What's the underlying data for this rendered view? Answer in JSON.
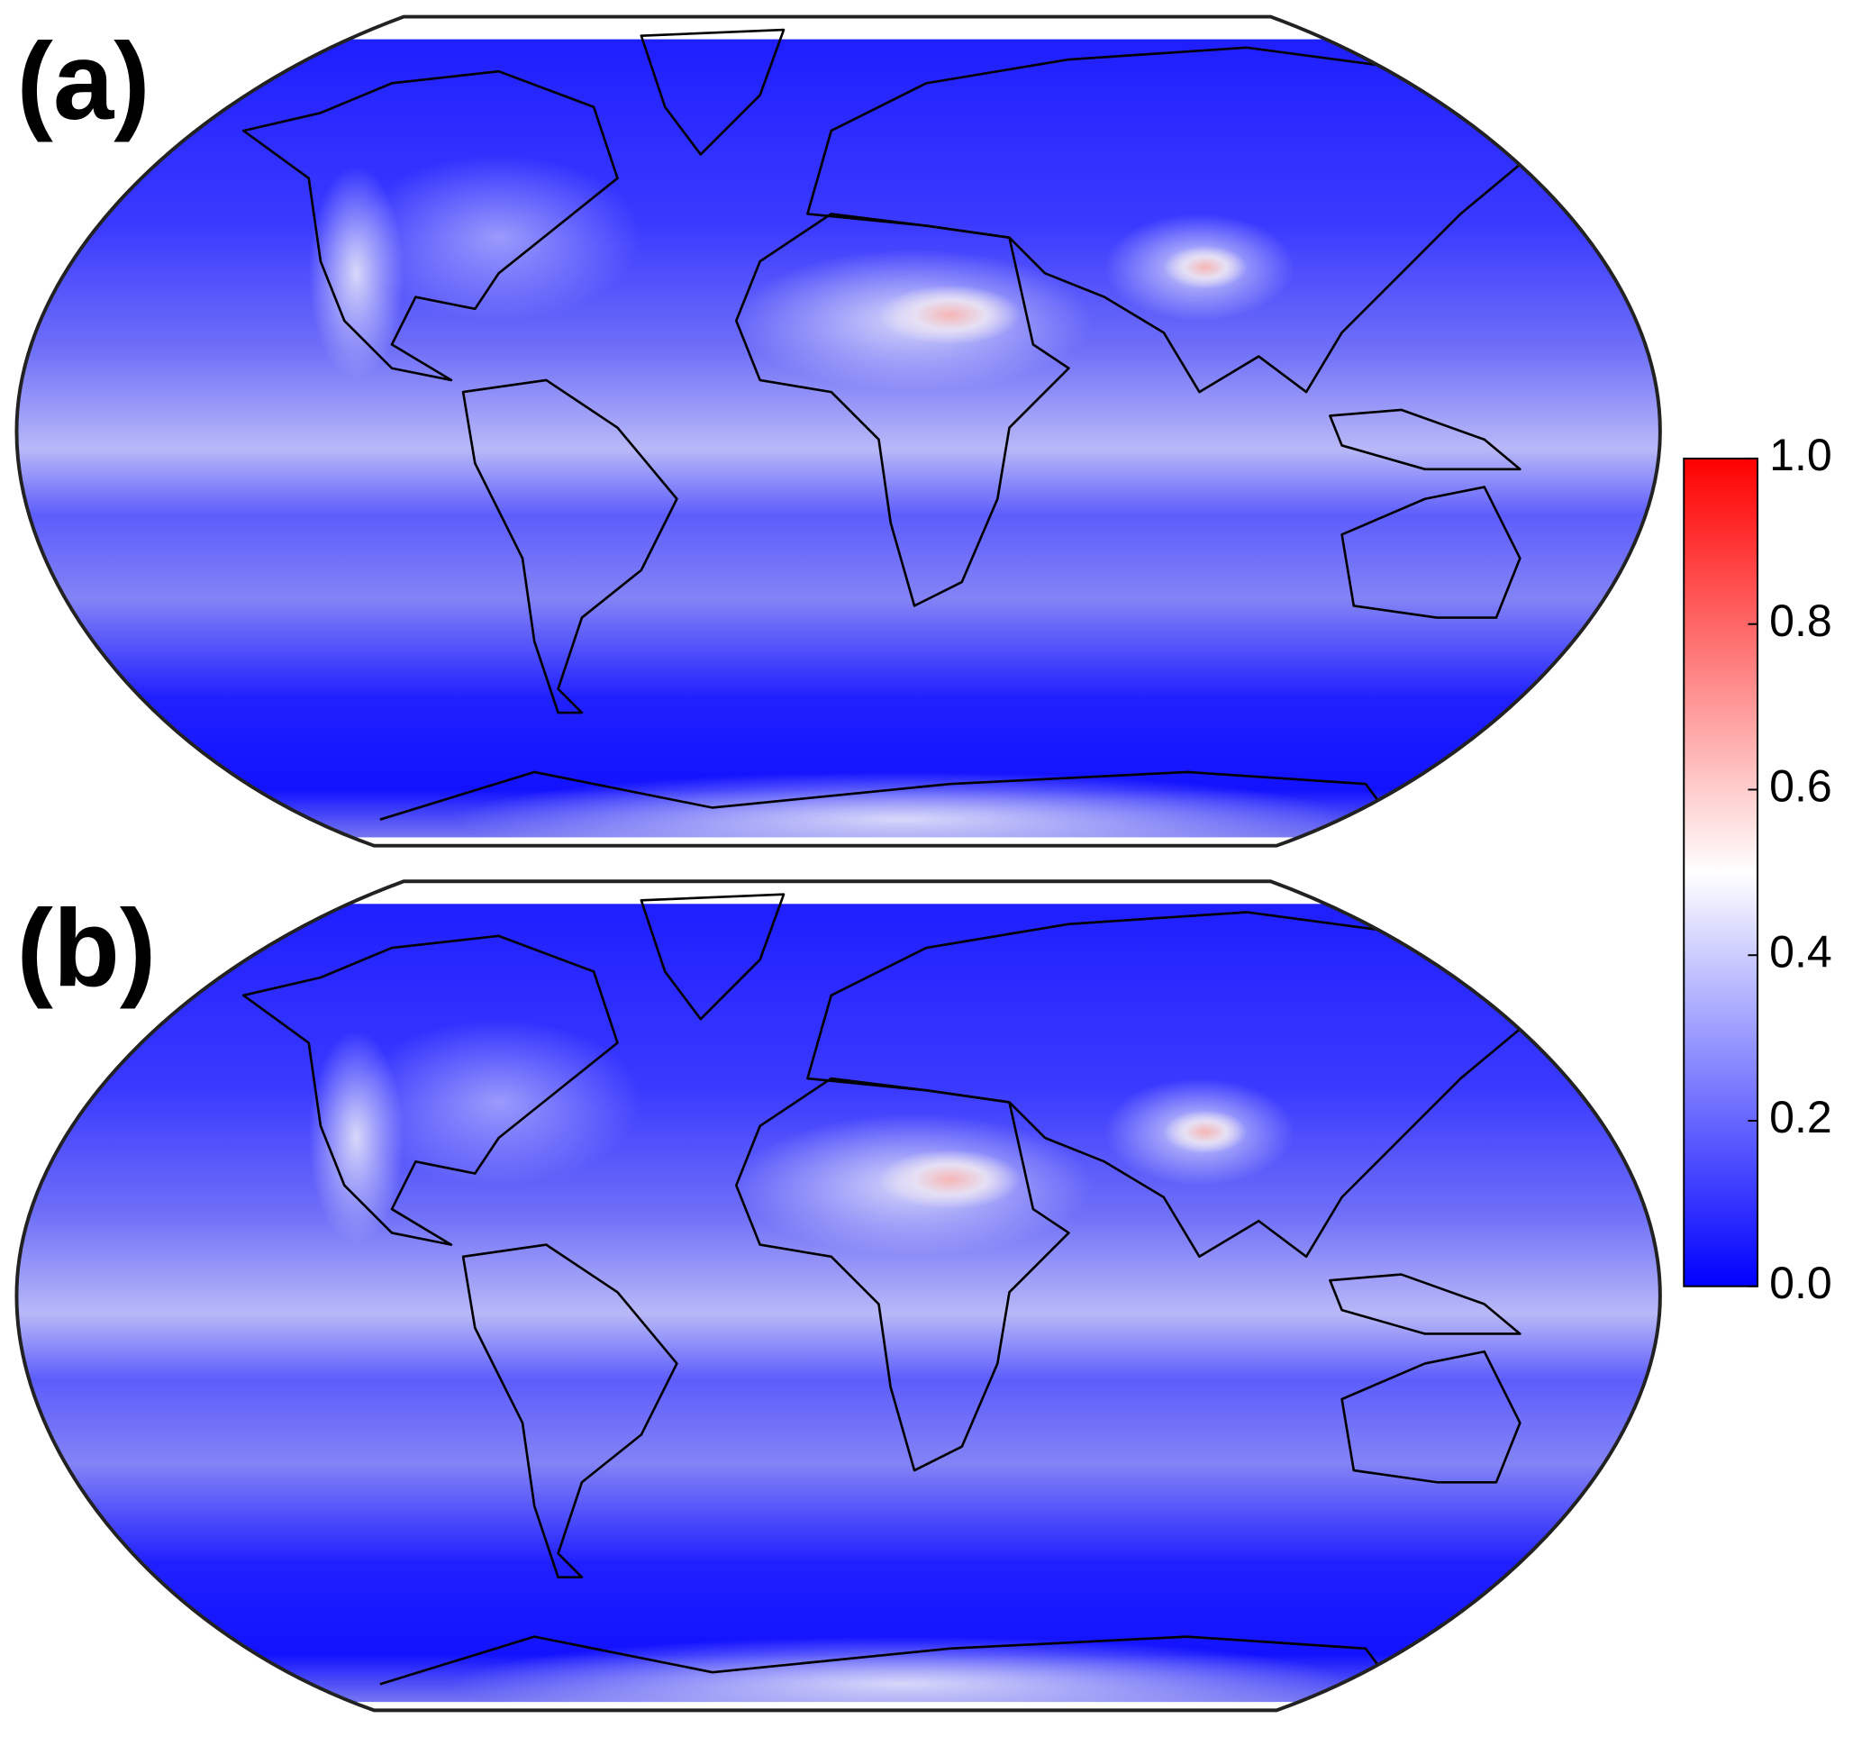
{
  "panels": [
    {
      "label": "(a)"
    },
    {
      "label": "(b)"
    }
  ],
  "colorbar": {
    "lim": [
      0,
      1
    ],
    "ticks": [
      {
        "value": 0,
        "label": "0.0"
      },
      0.2,
      0.4,
      0.6,
      0.8,
      {
        "value": 1,
        "label": "1.0"
      }
    ],
    "colors": [
      "#0000ff",
      "#ffffff",
      "#ff0000"
    ]
  }
}
